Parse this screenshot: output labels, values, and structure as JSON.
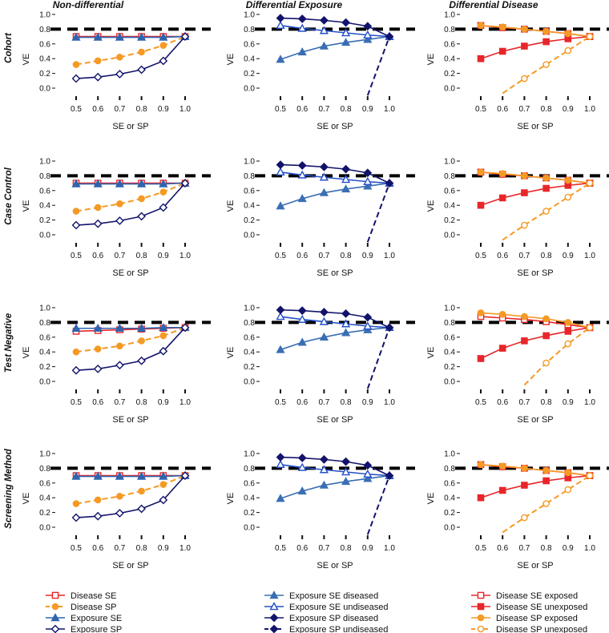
{
  "chart_data": {
    "type": "line",
    "column_titles": [
      "Non-differential",
      "Differential Exposure",
      "Differential Disease"
    ],
    "row_titles": [
      "Cohort",
      "Case Control",
      "Test Negative",
      "Screening Method"
    ],
    "xlabel": "SE or SP",
    "ylabel": "VE",
    "x": [
      0.5,
      0.6,
      0.7,
      0.8,
      0.9,
      1.0
    ],
    "x_tick_labels": [
      "0.5",
      "0.6",
      "0.7",
      "0.8",
      "0.9",
      "1.0"
    ],
    "y_tick_labels": [
      "0.0",
      "0.2",
      "0.4",
      "0.6",
      "0.8",
      "1.0"
    ],
    "ylim": [
      0,
      1
    ],
    "reference_line": 0.8,
    "panels": [
      {
        "row": "Cohort",
        "column": "Non-differential",
        "series": [
          {
            "key": "ns_se",
            "values": [
              0.7,
              0.7,
              0.7,
              0.7,
              0.7,
              0.7
            ]
          },
          {
            "key": "ns_sp",
            "values": [
              0.32,
              0.37,
              0.42,
              0.49,
              0.58,
              0.7
            ]
          },
          {
            "key": "ne_se",
            "values": [
              0.69,
              0.69,
              0.69,
              0.69,
              0.69,
              0.7
            ]
          },
          {
            "key": "ne_sp",
            "values": [
              0.13,
              0.15,
              0.19,
              0.25,
              0.37,
              0.7
            ]
          }
        ]
      },
      {
        "row": "Cohort",
        "column": "Differential Exposure",
        "series": [
          {
            "key": "ex_se_d",
            "values": [
              0.39,
              0.49,
              0.57,
              0.62,
              0.66,
              0.7
            ]
          },
          {
            "key": "ex_se_u",
            "values": [
              0.85,
              0.81,
              0.78,
              0.75,
              0.72,
              0.7
            ]
          },
          {
            "key": "ex_sp_d",
            "values": [
              0.95,
              0.94,
              0.92,
              0.89,
              0.84,
              0.7
            ]
          },
          {
            "key": "ex_sp_u",
            "values": [
              null,
              null,
              null,
              null,
              -0.1,
              0.7
            ]
          }
        ]
      },
      {
        "row": "Cohort",
        "column": "Differential Disease",
        "series": [
          {
            "key": "dd_se_e",
            "values": [
              0.85,
              0.82,
              0.8,
              0.77,
              0.74,
              0.7
            ]
          },
          {
            "key": "dd_se_u",
            "values": [
              0.4,
              0.5,
              0.57,
              0.63,
              0.67,
              0.7
            ]
          },
          {
            "key": "dd_sp_e",
            "values": [
              0.85,
              0.83,
              0.8,
              0.77,
              0.74,
              0.7
            ]
          },
          {
            "key": "dd_sp_u",
            "values": [
              null,
              -0.07,
              0.13,
              0.32,
              0.51,
              0.7
            ]
          }
        ]
      },
      {
        "row": "Case Control",
        "column": "Non-differential",
        "series": [
          {
            "key": "ns_se",
            "values": [
              0.7,
              0.7,
              0.7,
              0.7,
              0.7,
              0.7
            ]
          },
          {
            "key": "ns_sp",
            "values": [
              0.32,
              0.37,
              0.42,
              0.49,
              0.58,
              0.7
            ]
          },
          {
            "key": "ne_se",
            "values": [
              0.69,
              0.69,
              0.69,
              0.69,
              0.69,
              0.7
            ]
          },
          {
            "key": "ne_sp",
            "values": [
              0.13,
              0.15,
              0.19,
              0.25,
              0.37,
              0.7
            ]
          }
        ]
      },
      {
        "row": "Case Control",
        "column": "Differential Exposure",
        "series": [
          {
            "key": "ex_se_d",
            "values": [
              0.39,
              0.49,
              0.57,
              0.62,
              0.66,
              0.7
            ]
          },
          {
            "key": "ex_se_u",
            "values": [
              0.85,
              0.81,
              0.78,
              0.75,
              0.72,
              0.7
            ]
          },
          {
            "key": "ex_sp_d",
            "values": [
              0.95,
              0.94,
              0.92,
              0.89,
              0.84,
              0.7
            ]
          },
          {
            "key": "ex_sp_u",
            "values": [
              null,
              null,
              null,
              null,
              -0.1,
              0.7
            ]
          }
        ]
      },
      {
        "row": "Case Control",
        "column": "Differential Disease",
        "series": [
          {
            "key": "dd_se_e",
            "values": [
              0.85,
              0.82,
              0.8,
              0.77,
              0.74,
              0.7
            ]
          },
          {
            "key": "dd_se_u",
            "values": [
              0.4,
              0.5,
              0.57,
              0.63,
              0.67,
              0.7
            ]
          },
          {
            "key": "dd_sp_e",
            "values": [
              0.85,
              0.83,
              0.8,
              0.77,
              0.74,
              0.7
            ]
          },
          {
            "key": "dd_sp_u",
            "values": [
              null,
              -0.07,
              0.13,
              0.32,
              0.51,
              0.7
            ]
          }
        ]
      },
      {
        "row": "Test Negative",
        "column": "Non-differential",
        "series": [
          {
            "key": "ns_se",
            "values": [
              0.68,
              0.69,
              0.7,
              0.71,
              0.72,
              0.73
            ]
          },
          {
            "key": "ns_sp",
            "values": [
              0.4,
              0.44,
              0.48,
              0.55,
              0.62,
              0.73
            ]
          },
          {
            "key": "ne_se",
            "values": [
              0.72,
              0.72,
              0.72,
              0.72,
              0.73,
              0.73
            ]
          },
          {
            "key": "ne_sp",
            "values": [
              0.15,
              0.17,
              0.22,
              0.28,
              0.41,
              0.73
            ]
          }
        ]
      },
      {
        "row": "Test Negative",
        "column": "Differential Exposure",
        "series": [
          {
            "key": "ex_se_d",
            "values": [
              0.43,
              0.53,
              0.6,
              0.66,
              0.7,
              0.73
            ]
          },
          {
            "key": "ex_se_u",
            "values": [
              0.88,
              0.84,
              0.81,
              0.78,
              0.75,
              0.73
            ]
          },
          {
            "key": "ex_sp_d",
            "values": [
              0.97,
              0.96,
              0.94,
              0.92,
              0.87,
              0.73
            ]
          },
          {
            "key": "ex_sp_u",
            "values": [
              null,
              null,
              null,
              null,
              -0.1,
              0.73
            ]
          }
        ]
      },
      {
        "row": "Test Negative",
        "column": "Differential Disease",
        "series": [
          {
            "key": "dd_se_e",
            "values": [
              0.88,
              0.86,
              0.84,
              0.81,
              0.77,
              0.73
            ]
          },
          {
            "key": "dd_se_u",
            "values": [
              0.31,
              0.45,
              0.55,
              0.62,
              0.68,
              0.73
            ]
          },
          {
            "key": "dd_sp_e",
            "values": [
              0.93,
              0.91,
              0.88,
              0.85,
              0.8,
              0.73
            ]
          },
          {
            "key": "dd_sp_u",
            "values": [
              null,
              null,
              -0.05,
              0.25,
              0.51,
              0.73
            ]
          }
        ]
      },
      {
        "row": "Screening Method",
        "column": "Non-differential",
        "series": [
          {
            "key": "ns_se",
            "values": [
              0.7,
              0.7,
              0.7,
              0.7,
              0.7,
              0.7
            ]
          },
          {
            "key": "ns_sp",
            "values": [
              0.32,
              0.37,
              0.42,
              0.49,
              0.58,
              0.7
            ]
          },
          {
            "key": "ne_se",
            "values": [
              0.69,
              0.69,
              0.69,
              0.69,
              0.69,
              0.7
            ]
          },
          {
            "key": "ne_sp",
            "values": [
              0.13,
              0.15,
              0.19,
              0.25,
              0.37,
              0.7
            ]
          }
        ]
      },
      {
        "row": "Screening Method",
        "column": "Differential Exposure",
        "series": [
          {
            "key": "ex_se_d",
            "values": [
              0.39,
              0.49,
              0.57,
              0.62,
              0.66,
              0.7
            ]
          },
          {
            "key": "ex_se_u",
            "values": [
              0.85,
              0.81,
              0.78,
              0.75,
              0.72,
              0.7
            ]
          },
          {
            "key": "ex_sp_d",
            "values": [
              0.95,
              0.94,
              0.92,
              0.89,
              0.84,
              0.7
            ]
          },
          {
            "key": "ex_sp_u",
            "values": [
              null,
              null,
              null,
              null,
              -0.1,
              0.7
            ]
          }
        ]
      },
      {
        "row": "Screening Method",
        "column": "Differential Disease",
        "series": [
          {
            "key": "dd_se_e",
            "values": [
              0.85,
              0.82,
              0.8,
              0.77,
              0.74,
              0.7
            ]
          },
          {
            "key": "dd_se_u",
            "values": [
              0.4,
              0.5,
              0.57,
              0.63,
              0.67,
              0.7
            ]
          },
          {
            "key": "dd_sp_e",
            "values": [
              0.85,
              0.83,
              0.8,
              0.77,
              0.74,
              0.7
            ]
          },
          {
            "key": "dd_sp_u",
            "values": [
              null,
              -0.07,
              0.13,
              0.32,
              0.51,
              0.7
            ]
          }
        ]
      }
    ],
    "series_styles": {
      "ns_se": {
        "name": "Disease SE",
        "color": "#e8262a",
        "marker": "square-open",
        "dash": false
      },
      "ns_sp": {
        "name": "Disease SP",
        "color": "#f49a25",
        "marker": "circle-filled",
        "dash": true
      },
      "ne_se": {
        "name": "Exposure SE",
        "color": "#2f64ae",
        "marker": "triangle",
        "dash": false
      },
      "ne_sp": {
        "name": "Exposure SP",
        "color": "#12136b",
        "marker": "diamond-open",
        "dash": false
      },
      "ex_se_d": {
        "name": "Exposure SE diseased",
        "color": "#3a6eb3",
        "marker": "triangle",
        "dash": false
      },
      "ex_se_u": {
        "name": "Exposure SE undiseased",
        "color": "#2450c8",
        "marker": "triangle-open",
        "dash": false
      },
      "ex_sp_d": {
        "name": "Exposure SP diseased",
        "color": "#12136b",
        "marker": "diamond-filled",
        "dash": false
      },
      "ex_sp_u": {
        "name": "Exposure SP undiseased",
        "color": "#12136b",
        "marker": "none",
        "dash": true
      },
      "dd_se_e": {
        "name": "Disease SE exposed",
        "color": "#e8262a",
        "marker": "square-open",
        "dash": false
      },
      "dd_se_u": {
        "name": "Disease SE unexposed",
        "color": "#e8262a",
        "marker": "square-filled",
        "dash": false
      },
      "dd_sp_e": {
        "name": "Disease SP exposed",
        "color": "#f49a25",
        "marker": "circle-filled",
        "dash": false
      },
      "dd_sp_u": {
        "name": "Disease SP unexposed",
        "color": "#f49a25",
        "marker": "circle-open",
        "dash": true
      }
    },
    "legend": [
      [
        "ns_se",
        "ns_sp",
        "ne_se",
        "ne_sp"
      ],
      [
        "ex_se_d",
        "ex_se_u",
        "ex_sp_d",
        "ex_sp_u"
      ],
      [
        "dd_se_e",
        "dd_se_u",
        "dd_sp_e",
        "dd_sp_u"
      ]
    ]
  }
}
